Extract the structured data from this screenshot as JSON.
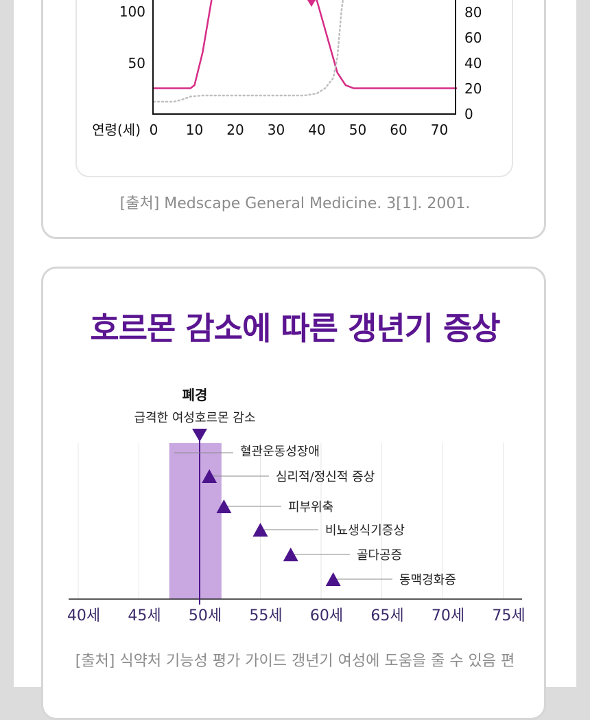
{
  "colors": {
    "purple": "#4c148c",
    "purple_band": "#c9a8e1",
    "magenta": "#d62c87",
    "grey_dotted": "#bfbfbf",
    "title": "#5b1591"
  },
  "top_card": {
    "source": "[출처] Medscape General Medicine. 3[1]. 2001."
  },
  "bottom_card": {
    "title": "호르몬 감소에 따른 갱년기 증상",
    "source": "[출처] 식약처 기능성 평가 가이드 갱년기 여성에 도움을 줄 수 있음 편"
  },
  "chart_data": [
    {
      "type": "line",
      "title": "",
      "xlabel": "연령(세)",
      "x_ticks": [
        0,
        10,
        20,
        30,
        40,
        50,
        60,
        70
      ],
      "y_left_ticks": [
        50,
        100
      ],
      "y_right_ticks": [
        0,
        20,
        40,
        60,
        80
      ],
      "series": [
        {
          "style": "solid",
          "color": "#d62c87",
          "points": [
            [
              0,
              25
            ],
            [
              9,
              25
            ],
            [
              10,
              28
            ],
            [
              12,
              60
            ],
            [
              15,
              130
            ],
            [
              38,
              130
            ],
            [
              40,
              110
            ],
            [
              45,
              40
            ],
            [
              47,
              28
            ],
            [
              49,
              25
            ],
            [
              75,
              25
            ]
          ]
        },
        {
          "style": "dotted",
          "color": "#bfbfbf",
          "points": [
            [
              0,
              12
            ],
            [
              5,
              12
            ],
            [
              7,
              14
            ],
            [
              9,
              17
            ],
            [
              12,
              18
            ],
            [
              37,
              18
            ],
            [
              40,
              20
            ],
            [
              42,
              25
            ],
            [
              44,
              35
            ],
            [
              45,
              55
            ],
            [
              46,
              100
            ],
            [
              47,
              130
            ],
            [
              48,
              160
            ]
          ]
        }
      ]
    },
    {
      "type": "scatter",
      "title": "호르몬 감소에 따른 갱년기 증상",
      "xlabel": "",
      "ylabel": "",
      "xlim": [
        39.5,
        76.5
      ],
      "x_ticks": [
        "40세",
        "45세",
        "50세",
        "55세",
        "60세",
        "65세",
        "70세",
        "75세"
      ],
      "x_tick_values": [
        40,
        45,
        50,
        55,
        60,
        65,
        70,
        75
      ],
      "band": [
        47.5,
        51.8
      ],
      "menopause": {
        "label": "폐경",
        "sublabel": "급격한 여성호르몬 감소",
        "age": 50
      },
      "symptoms": [
        {
          "label": "혈관운동성장애",
          "age": 48,
          "level": 0
        },
        {
          "label": "심리적/정신적 증상",
          "age": 50.8,
          "level": 1
        },
        {
          "label": "피부위축",
          "age": 52,
          "level": 2
        },
        {
          "label": "비뇨생식기증상",
          "age": 55,
          "level": 3
        },
        {
          "label": "골다공증",
          "age": 57.5,
          "level": 4
        },
        {
          "label": "동맥경화증",
          "age": 61,
          "level": 5
        }
      ]
    }
  ]
}
